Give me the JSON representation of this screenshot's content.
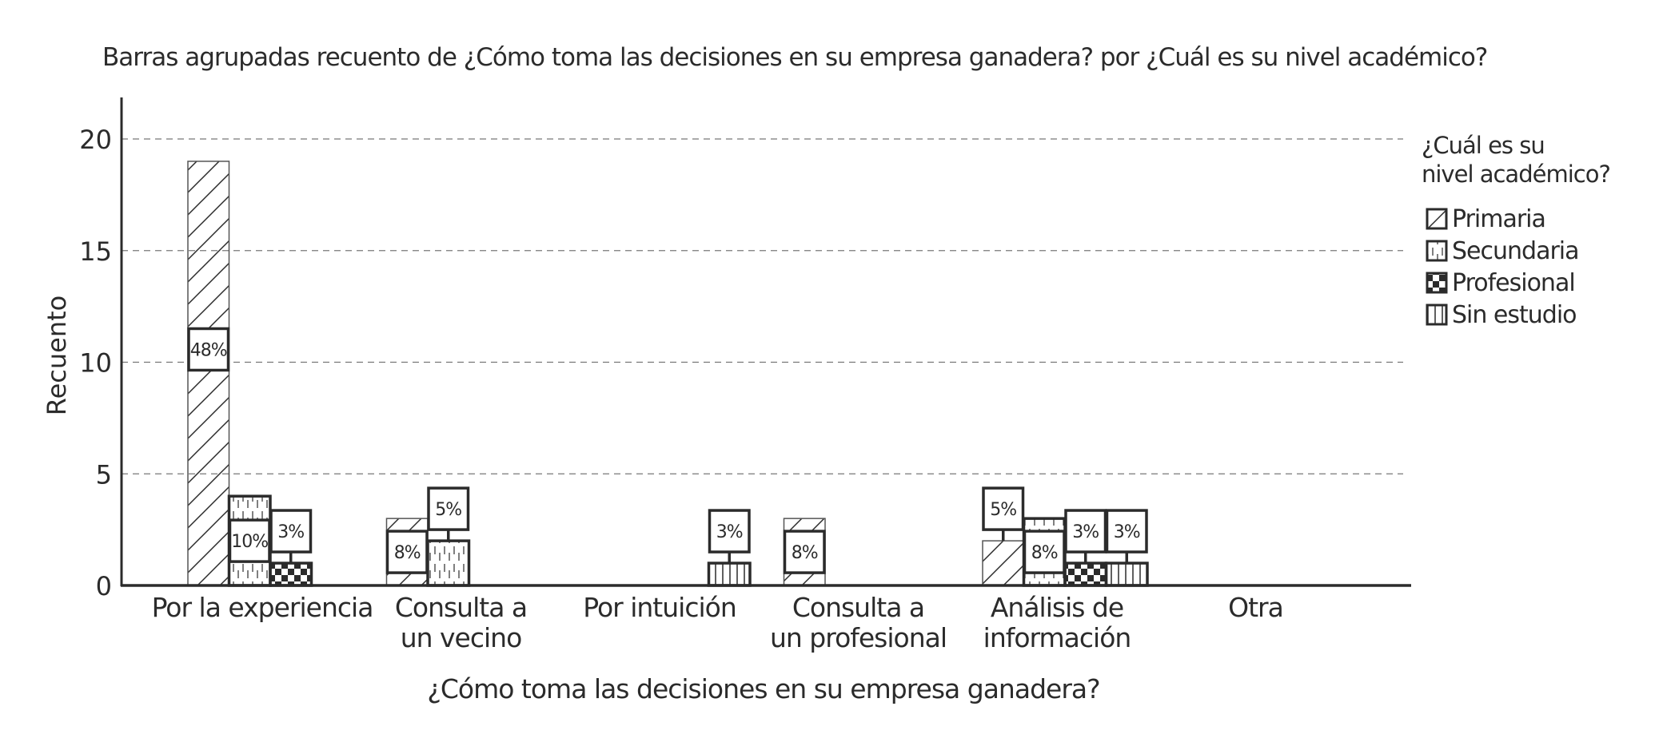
{
  "chart_data": {
    "type": "bar",
    "title": "Barras agrupadas recuento de ¿Cómo toma las decisiones en su empresa ganadera? por ¿Cuál es su nivel académico?",
    "xlabel": "¿Cómo toma las decisiones en su empresa ganadera?",
    "ylabel": "Recuento",
    "ylim": [
      0,
      22
    ],
    "yticks": [
      0,
      5,
      10,
      15,
      20
    ],
    "grid": true,
    "legend_title": [
      "¿Cuál es su",
      "nivel académico?"
    ],
    "legend_position": "right",
    "categories": [
      [
        "Por la experiencia"
      ],
      [
        "Consulta a",
        "un vecino"
      ],
      [
        "Por intuición"
      ],
      [
        "Consulta a",
        "un profesional"
      ],
      [
        "Análisis de",
        "información"
      ],
      [
        "Otra"
      ]
    ],
    "series": [
      {
        "name": "Primaria",
        "pattern": "diagonal",
        "values": [
          19,
          3,
          0,
          3,
          2,
          0
        ],
        "labels": [
          "48%",
          "8%",
          "",
          "8%",
          "5%",
          ""
        ]
      },
      {
        "name": "Secundaria",
        "pattern": "dashed-vertical",
        "values": [
          4,
          2,
          0,
          0,
          3,
          0
        ],
        "labels": [
          "10%",
          "5%",
          "",
          "",
          "8%",
          ""
        ]
      },
      {
        "name": "Profesional",
        "pattern": "checker",
        "values": [
          1,
          0,
          0,
          0,
          1,
          0
        ],
        "labels": [
          "3%",
          "",
          "",
          "",
          "3%",
          ""
        ]
      },
      {
        "name": "Sin estudio",
        "pattern": "vertical",
        "values": [
          0,
          0,
          1,
          0,
          1,
          0
        ],
        "labels": [
          "",
          "",
          "3%",
          "",
          "3%",
          ""
        ]
      }
    ],
    "colors": {
      "ink": "#2b2b2b",
      "grid": "#777777"
    }
  }
}
